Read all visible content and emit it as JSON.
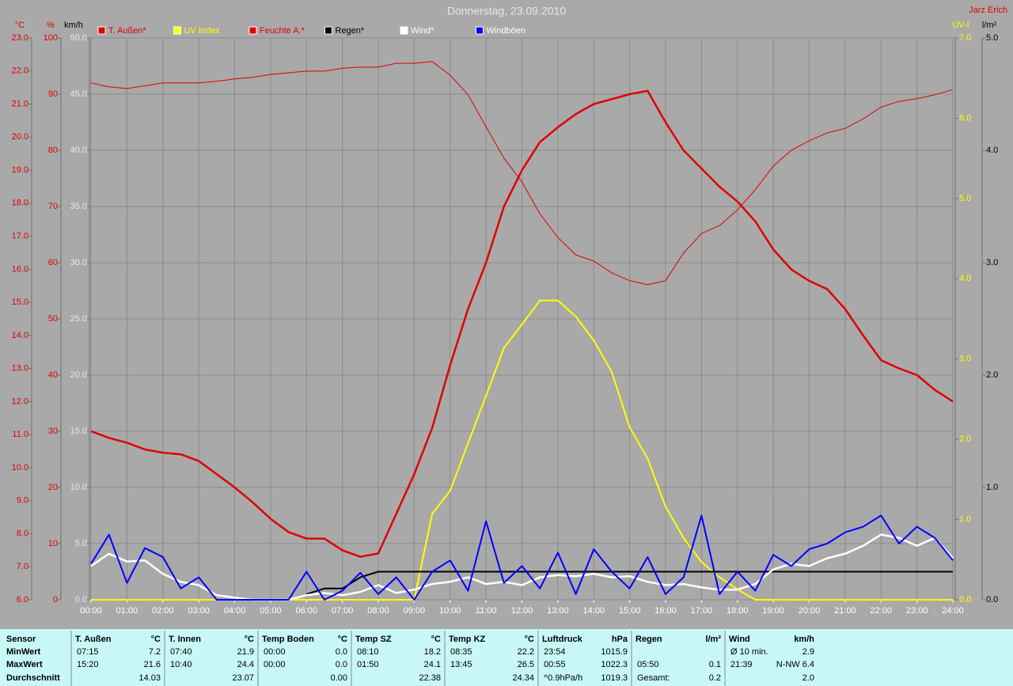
{
  "chart_data": {
    "type": "line",
    "title": "Donnerstag, 23.09.2010",
    "author": "Jarz Erich",
    "grid": true,
    "x": [
      0,
      0.5,
      1,
      1.5,
      2,
      2.5,
      3,
      3.5,
      4,
      4.5,
      5,
      5.5,
      6,
      6.5,
      7,
      7.5,
      8,
      8.5,
      9,
      9.5,
      10,
      10.5,
      11,
      11.5,
      12,
      12.5,
      13,
      13.5,
      14,
      14.5,
      15,
      15.5,
      16,
      16.5,
      17,
      17.5,
      18,
      18.5,
      19,
      19.5,
      20,
      20.5,
      21,
      21.5,
      22,
      22.5,
      23,
      23.5,
      24
    ],
    "xlim": [
      0,
      24
    ],
    "xticks": [
      {
        "value": 0,
        "label": "00:00"
      },
      {
        "value": 1,
        "label": "01:00"
      },
      {
        "value": 2,
        "label": "02:00"
      },
      {
        "value": 3,
        "label": "03:00"
      },
      {
        "value": 4,
        "label": "04:00"
      },
      {
        "value": 5,
        "label": "05:00"
      },
      {
        "value": 6,
        "label": "06:00"
      },
      {
        "value": 7,
        "label": "07:00"
      },
      {
        "value": 8,
        "label": "08:00"
      },
      {
        "value": 9,
        "label": "09:00"
      },
      {
        "value": 10,
        "label": "10:00"
      },
      {
        "value": 11,
        "label": "11:00"
      },
      {
        "value": 12,
        "label": "12:00"
      },
      {
        "value": 13,
        "label": "13:00"
      },
      {
        "value": 14,
        "label": "14:00"
      },
      {
        "value": 15,
        "label": "15:00"
      },
      {
        "value": 16,
        "label": "16:00"
      },
      {
        "value": 17,
        "label": "17:00"
      },
      {
        "value": 18,
        "label": "18:00"
      },
      {
        "value": 19,
        "label": "19:00"
      },
      {
        "value": 20,
        "label": "20:00"
      },
      {
        "value": 21,
        "label": "21:00"
      },
      {
        "value": 22,
        "label": "22:00"
      },
      {
        "value": 23,
        "label": "23:00"
      },
      {
        "value": 24,
        "label": "24:00"
      }
    ],
    "axes": {
      "temp": {
        "label": "°C",
        "color": "#e00000",
        "lim": [
          6,
          23
        ],
        "ticks": [
          {
            "value": 6,
            "label": "6.0"
          },
          {
            "value": 7,
            "label": "7.0"
          },
          {
            "value": 8,
            "label": "8.0"
          },
          {
            "value": 9,
            "label": "9.0"
          },
          {
            "value": 10,
            "label": "10.0"
          },
          {
            "value": 11,
            "label": "11.0"
          },
          {
            "value": 12,
            "label": "12.0"
          },
          {
            "value": 13,
            "label": "13.0"
          },
          {
            "value": 14,
            "label": "14.0"
          },
          {
            "value": 15,
            "label": "15.0"
          },
          {
            "value": 16,
            "label": "16.0"
          },
          {
            "value": 17,
            "label": "17.0"
          },
          {
            "value": 18,
            "label": "18.0"
          },
          {
            "value": 19,
            "label": "19.0"
          },
          {
            "value": 20,
            "label": "20.0"
          },
          {
            "value": 21,
            "label": "21.0"
          },
          {
            "value": 22,
            "label": "22.0"
          },
          {
            "value": 23,
            "label": "23.0"
          }
        ]
      },
      "hum": {
        "label": "%",
        "color": "#e00000",
        "lim": [
          0,
          100
        ],
        "ticks": [
          0,
          10,
          20,
          30,
          40,
          50,
          60,
          70,
          80,
          90,
          100
        ]
      },
      "wind": {
        "label": "km/h",
        "color": "#e8e8e8",
        "lim": [
          0,
          50
        ],
        "ticks": [
          {
            "value": 0,
            "label": "0.0"
          },
          {
            "value": 5,
            "label": "5.0"
          },
          {
            "value": 10,
            "label": "10.0"
          },
          {
            "value": 15,
            "label": "15.0"
          },
          {
            "value": 20,
            "label": "20.0"
          },
          {
            "value": 25,
            "label": "25.0"
          },
          {
            "value": 30,
            "label": "30.0"
          },
          {
            "value": 35,
            "label": "35.0"
          },
          {
            "value": 40,
            "label": "40.0"
          },
          {
            "value": 45,
            "label": "45.0"
          },
          {
            "value": 50,
            "label": "50.0"
          }
        ]
      },
      "uv": {
        "label": "UV-I",
        "color": "#ffff00",
        "lim": [
          0,
          7
        ],
        "ticks": [
          {
            "value": 0,
            "label": "0.0"
          },
          {
            "value": 1,
            "label": "1.0"
          },
          {
            "value": 2,
            "label": "2.0"
          },
          {
            "value": 3,
            "label": "3.0"
          },
          {
            "value": 4,
            "label": "4.0"
          },
          {
            "value": 5,
            "label": "5.0"
          },
          {
            "value": 6,
            "label": "6.0"
          },
          {
            "value": 7,
            "label": "7.0"
          }
        ]
      },
      "rain": {
        "label": "l/m²",
        "color": "#000000",
        "lim": [
          0,
          5
        ],
        "ticks": [
          {
            "value": 0,
            "label": "0.0"
          },
          {
            "value": 1,
            "label": "1.0"
          },
          {
            "value": 2,
            "label": "2.0"
          },
          {
            "value": 3,
            "label": "3.0"
          },
          {
            "value": 4,
            "label": "4.0"
          },
          {
            "value": 5,
            "label": "5.0"
          }
        ]
      }
    },
    "series": [
      {
        "name": "T. Außen*",
        "color": "#e00000",
        "axis": "temp",
        "width": 2.5,
        "values": [
          11.1,
          10.9,
          10.75,
          10.55,
          10.45,
          10.4,
          10.2,
          9.8,
          9.4,
          8.95,
          8.45,
          8.05,
          7.85,
          7.85,
          7.5,
          7.3,
          7.4,
          8.6,
          9.8,
          11.2,
          13.1,
          14.8,
          16.2,
          17.9,
          19.0,
          19.85,
          20.3,
          20.7,
          21.0,
          21.15,
          21.3,
          21.4,
          20.45,
          19.6,
          19.05,
          18.5,
          18.05,
          17.45,
          16.6,
          16.0,
          15.65,
          15.4,
          14.8,
          14.0,
          13.25,
          13.0,
          12.8,
          12.35,
          12.0
        ]
      },
      {
        "name": "UV Index",
        "color": "#ffff00",
        "axis": "uv",
        "width": 2,
        "values": [
          0,
          0,
          0,
          0,
          0,
          0,
          0,
          0,
          0,
          0,
          0,
          0,
          0,
          0,
          0,
          0,
          0,
          0,
          0,
          1.07,
          1.36,
          1.95,
          2.54,
          3.14,
          3.43,
          3.73,
          3.73,
          3.53,
          3.23,
          2.84,
          2.15,
          1.76,
          1.16,
          0.77,
          0.47,
          0.28,
          0.13,
          0,
          0,
          0,
          0,
          0,
          0,
          0,
          0,
          0,
          0,
          0,
          0
        ]
      },
      {
        "name": "Feuchte A.*",
        "color": "#e00000",
        "axis": "hum",
        "width": 1,
        "values": [
          92,
          91.3,
          91,
          91.5,
          92,
          92,
          92,
          92.3,
          92.7,
          93,
          93.5,
          93.8,
          94.1,
          94.1,
          94.6,
          94.8,
          94.8,
          95.5,
          95.5,
          95.8,
          93.4,
          89.9,
          84.2,
          78.6,
          74.4,
          68.7,
          64.5,
          61.4,
          60.3,
          58.2,
          56.8,
          56.1,
          56.8,
          61.7,
          65.2,
          66.6,
          69.4,
          73,
          77.2,
          80,
          81.7,
          83.1,
          83.9,
          85.6,
          87.7,
          88.7,
          89.2,
          89.9,
          90.8
        ]
      },
      {
        "name": "Regen*",
        "color": "#000000",
        "axis": "rain",
        "width": 2,
        "values": [
          null,
          null,
          null,
          null,
          null,
          null,
          null,
          null,
          null,
          null,
          null,
          null,
          0.05,
          0.1,
          0.1,
          0.2,
          0.25,
          0.25,
          0.25,
          0.25,
          0.25,
          0.25,
          0.25,
          0.25,
          0.25,
          0.25,
          0.25,
          0.25,
          0.25,
          0.25,
          0.25,
          0.25,
          0.25,
          0.25,
          0.25,
          0.25,
          0.25,
          0.25,
          0.25,
          0.25,
          0.25,
          0.25,
          0.25,
          0.25,
          0.25,
          0.25,
          0.25,
          0.25,
          0.25
        ]
      },
      {
        "name": "Wind*",
        "color": "#ffffff",
        "axis": "wind",
        "width": 2.5,
        "values": [
          3.0,
          4.1,
          3.4,
          3.5,
          2.3,
          1.6,
          1.3,
          0.4,
          0.2,
          0,
          0,
          0,
          0.4,
          0.6,
          0.4,
          0.7,
          1.3,
          0.6,
          0.9,
          1.4,
          1.6,
          2.0,
          1.4,
          1.6,
          1.3,
          2.0,
          2.2,
          2.1,
          2.3,
          2.0,
          2.1,
          1.6,
          1.3,
          1.4,
          1.1,
          0.9,
          0.9,
          1.4,
          2.7,
          3.2,
          3.0,
          3.7,
          4.1,
          4.8,
          5.8,
          5.5,
          4.8,
          5.5,
          3.7
        ]
      },
      {
        "name": "Windböen",
        "color": "#0000ff",
        "axis": "wind",
        "width": 2,
        "values": [
          3.2,
          5.8,
          1.5,
          4.6,
          3.8,
          1.0,
          2.0,
          0,
          0,
          0,
          0,
          0,
          2.5,
          0,
          0.8,
          2.4,
          0.5,
          2.0,
          0,
          2.5,
          3.5,
          0.8,
          7.0,
          1.5,
          3.0,
          1.0,
          4.2,
          0.5,
          4.5,
          2.5,
          1.0,
          3.8,
          0.5,
          2.0,
          7.5,
          0.5,
          2.5,
          0.8,
          4.0,
          3.0,
          4.5,
          5.0,
          6.0,
          6.5,
          7.5,
          5.0,
          6.5,
          5.5,
          3.5
        ]
      }
    ]
  },
  "summary": {
    "row_labels": [
      "Sensor",
      "MinWert",
      "MaxWert",
      "Durchschnitt"
    ],
    "groups": [
      {
        "name": "T. Außen",
        "unit": "°C",
        "rows": [
          {
            "time": "07:15",
            "value": "7.2"
          },
          {
            "time": "15:20",
            "value": "21.6"
          },
          {
            "value": "14.03"
          }
        ]
      },
      {
        "name": "T. Innen",
        "unit": "°C",
        "rows": [
          {
            "time": "07:40",
            "value": "21.9"
          },
          {
            "time": "10:40",
            "value": "24.4"
          },
          {
            "value": "23.07"
          }
        ]
      },
      {
        "name": "Temp Boden",
        "unit": "°C",
        "rows": [
          {
            "time": "00:00",
            "value": "0.0"
          },
          {
            "time": "00:00",
            "value": "0.0"
          },
          {
            "value": "0.00"
          }
        ]
      },
      {
        "name": "Temp SZ",
        "unit": "°C",
        "rows": [
          {
            "time": "08:10",
            "value": "18.2"
          },
          {
            "time": "01:50",
            "value": "24.1"
          },
          {
            "value": "22.38"
          }
        ]
      },
      {
        "name": "Temp KZ",
        "unit": "°C",
        "rows": [
          {
            "time": "08:35",
            "value": "22.2"
          },
          {
            "time": "13:45",
            "value": "26.5"
          },
          {
            "value": "24.34"
          }
        ]
      },
      {
        "name": "Luftdruck",
        "unit": "hPa",
        "rows": [
          {
            "time": "23:54",
            "value": "1015.9"
          },
          {
            "time": "00:55",
            "value": "1022.3"
          },
          {
            "time": "^0.9hPa/h",
            "value": "1019.3"
          }
        ]
      },
      {
        "name": "Regen",
        "unit": "l/m²",
        "rows": [
          null,
          {
            "time": "05:50",
            "value": "0.1"
          },
          {
            "time": "Gesamt:",
            "value": "0.2"
          }
        ]
      },
      {
        "name": "Wind",
        "unit": "km/h",
        "rows": [
          {
            "time": "Ø 10 min.",
            "value": "2.9"
          },
          {
            "time": "21:39",
            "value": "N-NW 6.4"
          },
          {
            "value": "2.0"
          }
        ]
      }
    ]
  }
}
